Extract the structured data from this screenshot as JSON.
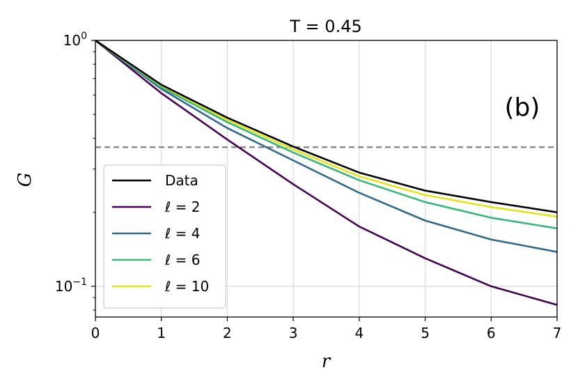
{
  "chart_data": {
    "type": "line",
    "title": "T = 0.45",
    "xlabel": "r",
    "ylabel": "G",
    "annotation": "(b)",
    "xlim": [
      0,
      7
    ],
    "ylim": [
      0.075,
      1.0
    ],
    "yscale": "log",
    "grid": true,
    "legend_position": "lower-left",
    "x": [
      0,
      1,
      2,
      3,
      4,
      5,
      6,
      7
    ],
    "x_ticks": [
      "0",
      "1",
      "2",
      "3",
      "4",
      "5",
      "6",
      "7"
    ],
    "y_ticks": [
      {
        "base": "10",
        "exp": "0",
        "value": 1.0
      },
      {
        "base": "10",
        "exp": "−1",
        "value": 0.1
      }
    ],
    "reference_line": {
      "y": 0.368,
      "style": "dashed",
      "color": "#808080"
    },
    "series": [
      {
        "name": "Data",
        "color": "#000000",
        "values": [
          1.0,
          0.66,
          0.485,
          0.37,
          0.29,
          0.245,
          0.22,
          0.2
        ]
      },
      {
        "name": "ℓ = 2",
        "color": "#440154",
        "values": [
          1.0,
          0.61,
          0.395,
          0.26,
          0.175,
          0.13,
          0.1,
          0.084
        ]
      },
      {
        "name": "ℓ = 4",
        "color": "#31688e",
        "values": [
          1.0,
          0.635,
          0.44,
          0.325,
          0.24,
          0.185,
          0.155,
          0.138
        ]
      },
      {
        "name": "ℓ = 6",
        "color": "#35b779",
        "values": [
          1.0,
          0.645,
          0.465,
          0.35,
          0.27,
          0.22,
          0.19,
          0.172
        ]
      },
      {
        "name": "ℓ = 10",
        "color": "#e4e419",
        "values": [
          1.0,
          0.655,
          0.475,
          0.36,
          0.28,
          0.235,
          0.21,
          0.192
        ]
      }
    ]
  }
}
